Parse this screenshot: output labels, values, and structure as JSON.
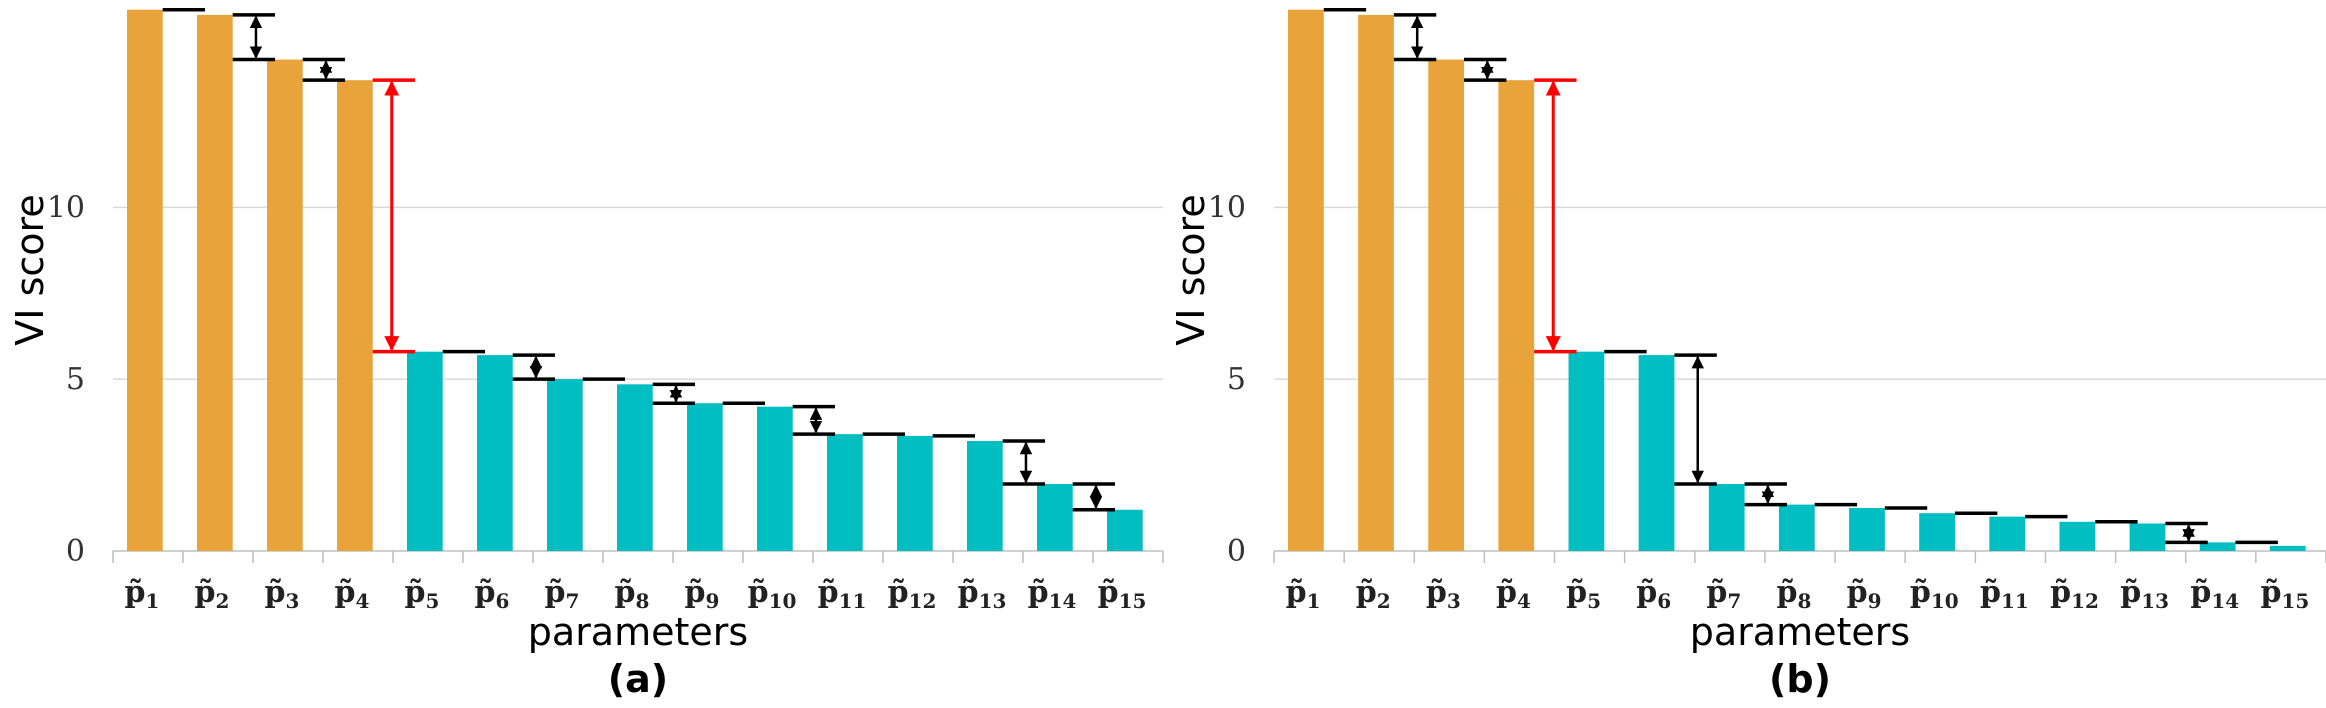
{
  "chart_data": [
    {
      "type": "bar",
      "panel_label": "(a)",
      "categories": [
        "p̃1",
        "p̃2",
        "p̃3",
        "p̃4",
        "p̃5",
        "p̃6",
        "p̃7",
        "p̃8",
        "p̃9",
        "p̃10",
        "p̃11",
        "p̃12",
        "p̃13",
        "p̃14",
        "p̃15"
      ],
      "category_base": "p̃",
      "category_subscripts": [
        "1",
        "2",
        "3",
        "4",
        "5",
        "6",
        "7",
        "8",
        "9",
        "10",
        "11",
        "12",
        "13",
        "14",
        "15"
      ],
      "values": [
        15.75,
        15.6,
        14.3,
        13.7,
        5.8,
        5.7,
        5.0,
        4.85,
        4.3,
        4.2,
        3.4,
        3.35,
        3.2,
        1.95,
        1.2
      ],
      "group_sizes": [
        4,
        11
      ],
      "bar_colors": [
        "#E8A33A",
        "#00BEC2"
      ],
      "xlabel": "parameters",
      "ylabel": "VI score",
      "ylim": [
        0,
        15.8
      ],
      "yticks": [
        0,
        5,
        10
      ],
      "grid": true,
      "highlight_gap": {
        "after_index": 3,
        "color": "#FF0000"
      },
      "gap_arrows_after": [
        1,
        2,
        5,
        7,
        9,
        12,
        13
      ]
    },
    {
      "type": "bar",
      "panel_label": "(b)",
      "categories": [
        "p̃1",
        "p̃2",
        "p̃3",
        "p̃4",
        "p̃5",
        "p̃6",
        "p̃7",
        "p̃8",
        "p̃9",
        "p̃10",
        "p̃11",
        "p̃12",
        "p̃13",
        "p̃14",
        "p̃15"
      ],
      "category_base": "p̃",
      "category_subscripts": [
        "1",
        "2",
        "3",
        "4",
        "5",
        "6",
        "7",
        "8",
        "9",
        "10",
        "11",
        "12",
        "13",
        "14",
        "15"
      ],
      "values": [
        15.75,
        15.6,
        14.3,
        13.7,
        5.8,
        5.7,
        1.95,
        1.35,
        1.25,
        1.1,
        1.0,
        0.85,
        0.8,
        0.25,
        0.15
      ],
      "group_sizes": [
        4,
        11
      ],
      "bar_colors": [
        "#E8A33A",
        "#00BEC2"
      ],
      "xlabel": "parameters",
      "ylabel": "VI score",
      "ylim": [
        0,
        15.8
      ],
      "yticks": [
        0,
        5,
        10
      ],
      "grid": true,
      "highlight_gap": {
        "after_index": 3,
        "color": "#FF0000"
      },
      "gap_arrows_after": [
        1,
        2,
        5,
        6,
        12
      ]
    }
  ]
}
